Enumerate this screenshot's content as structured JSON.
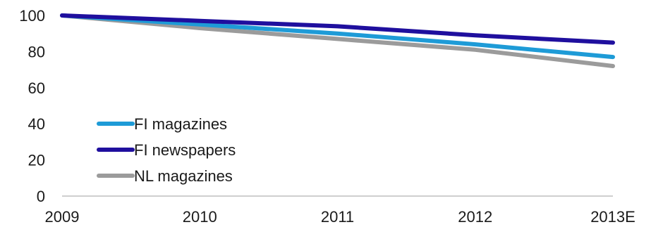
{
  "chart_data": {
    "type": "line",
    "title": "",
    "xlabel": "",
    "ylabel": "",
    "x": [
      "2009",
      "2010",
      "2011",
      "2012",
      "2013E"
    ],
    "y_ticks": [
      "0",
      "20",
      "40",
      "60",
      "80",
      "100"
    ],
    "ylim": [
      0,
      100
    ],
    "grid": false,
    "legend_position": "lower-left",
    "series": [
      {
        "name": "FI magazines",
        "color": "#1e9bd7",
        "values": [
          100,
          95,
          90,
          84,
          77
        ]
      },
      {
        "name": "FI newspapers",
        "color": "#1f0f9e",
        "values": [
          100,
          97,
          94,
          89,
          85
        ]
      },
      {
        "name": "NL magazines",
        "color": "#9b9b9b",
        "values": [
          100,
          93,
          87,
          81,
          72
        ]
      }
    ]
  }
}
